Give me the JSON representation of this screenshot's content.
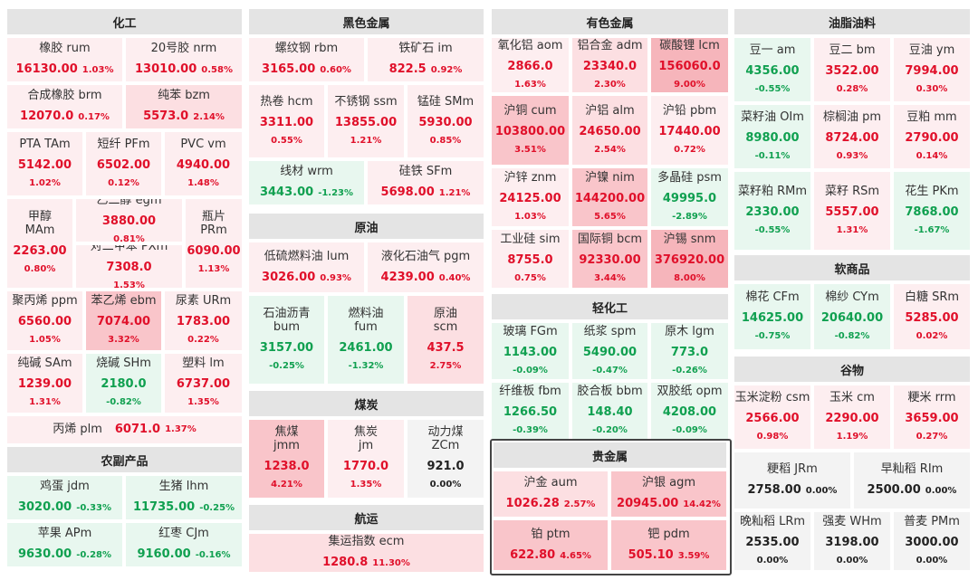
{
  "sections": [
    {
      "title": "化工",
      "tiles": [
        {
          "name": "橡胶 rum",
          "price": "16130.00",
          "pct": "1.03%",
          "dir": "up"
        },
        {
          "name": "20号胶 nrm",
          "price": "13010.00",
          "pct": "0.58%",
          "dir": "up"
        },
        {
          "name": "合成橡胶 brm",
          "price": "12070.0",
          "pct": "0.17%",
          "dir": "up"
        },
        {
          "name": "纯苯 bzm",
          "price": "5573.0",
          "pct": "2.14%",
          "dir": "up"
        },
        {
          "name": "PTA TAm",
          "price": "5142.00",
          "pct": "1.02%",
          "dir": "up"
        },
        {
          "name": "短纤 PFm",
          "price": "6502.00",
          "pct": "0.12%",
          "dir": "up"
        },
        {
          "name": "PVC vm",
          "price": "4940.00",
          "pct": "1.48%",
          "dir": "up"
        },
        {
          "name": "甲醇\nMAm",
          "price": "2263.00",
          "pct": "0.80%",
          "dir": "up"
        },
        {
          "name": "乙二醇 egm",
          "price": "3880.00",
          "pct": "0.81%",
          "dir": "up"
        },
        {
          "name": "对二甲苯 PXm",
          "price": "7308.0",
          "pct": "1.53%",
          "dir": "up"
        },
        {
          "name": "瓶片\nPRm",
          "price": "6090.00",
          "pct": "1.13%",
          "dir": "up"
        },
        {
          "name": "聚丙烯 ppm",
          "price": "6560.00",
          "pct": "1.05%",
          "dir": "up"
        },
        {
          "name": "苯乙烯 ebm",
          "price": "7074.00",
          "pct": "3.32%",
          "dir": "up"
        },
        {
          "name": "尿素 URm",
          "price": "1783.00",
          "pct": "0.22%",
          "dir": "up"
        },
        {
          "name": "纯碱 SAm",
          "price": "1239.00",
          "pct": "1.31%",
          "dir": "up"
        },
        {
          "name": "烧碱 SHm",
          "price": "2180.0",
          "pct": "-0.82%",
          "dir": "down"
        },
        {
          "name": "塑料 lm",
          "price": "6737.00",
          "pct": "1.35%",
          "dir": "up"
        },
        {
          "name": "丙烯 plm",
          "price": "6071.0",
          "pct": "1.37%",
          "dir": "up"
        }
      ]
    },
    {
      "title": "农副产品",
      "tiles": [
        {
          "name": "鸡蛋 jdm",
          "price": "3020.00",
          "pct": "-0.33%",
          "dir": "down"
        },
        {
          "name": "生猪 lhm",
          "price": "11735.00",
          "pct": "-0.25%",
          "dir": "down"
        },
        {
          "name": "苹果 APm",
          "price": "9630.00",
          "pct": "-0.28%",
          "dir": "down"
        },
        {
          "name": "红枣 CJm",
          "price": "9160.00",
          "pct": "-0.16%",
          "dir": "down"
        }
      ]
    },
    {
      "title": "黑色金属",
      "tiles": [
        {
          "name": "螺纹钢 rbm",
          "price": "3165.00",
          "pct": "0.60%",
          "dir": "up"
        },
        {
          "name": "铁矿石 im",
          "price": "822.5",
          "pct": "0.92%",
          "dir": "up"
        },
        {
          "name": "热卷 hcm",
          "price": "3311.00",
          "pct": "0.55%",
          "dir": "up"
        },
        {
          "name": "不锈钢 ssm",
          "price": "13855.00",
          "pct": "1.21%",
          "dir": "up"
        },
        {
          "name": "锰硅 SMm",
          "price": "5930.00",
          "pct": "0.85%",
          "dir": "up"
        },
        {
          "name": "线材 wrm",
          "price": "3443.00",
          "pct": "-1.23%",
          "dir": "down"
        },
        {
          "name": "硅铁 SFm",
          "price": "5698.00",
          "pct": "1.21%",
          "dir": "up"
        }
      ]
    },
    {
      "title": "原油",
      "tiles": [
        {
          "name": "低硫燃料油 lum",
          "price": "3026.00",
          "pct": "0.93%",
          "dir": "up"
        },
        {
          "name": "液化石油气 pgm",
          "price": "4239.00",
          "pct": "0.40%",
          "dir": "up"
        },
        {
          "name": "石油沥青\nbum",
          "price": "3157.00",
          "pct": "-0.25%",
          "dir": "down"
        },
        {
          "name": "燃料油\nfum",
          "price": "2461.00",
          "pct": "-1.32%",
          "dir": "down"
        },
        {
          "name": "原油\nscm",
          "price": "437.5",
          "pct": "2.75%",
          "dir": "up"
        }
      ]
    },
    {
      "title": "煤炭",
      "tiles": [
        {
          "name": "焦煤\njmm",
          "price": "1238.0",
          "pct": "4.21%",
          "dir": "up"
        },
        {
          "name": "焦炭\njm",
          "price": "1770.0",
          "pct": "1.35%",
          "dir": "up"
        },
        {
          "name": "动力煤\nZCm",
          "price": "921.0",
          "pct": "0.00%",
          "dir": "flat"
        }
      ]
    },
    {
      "title": "航运",
      "tiles": [
        {
          "name": "集运指数 ecm",
          "price": "1280.8",
          "pct": "11.30%",
          "dir": "up"
        }
      ]
    },
    {
      "title": "有色金属",
      "tiles": [
        {
          "name": "氧化铝 aom",
          "price": "2866.0",
          "pct": "1.63%",
          "dir": "up"
        },
        {
          "name": "铝合金 adm",
          "price": "23340.0",
          "pct": "2.30%",
          "dir": "up"
        },
        {
          "name": "碳酸锂 lcm",
          "price": "156060.0",
          "pct": "9.00%",
          "dir": "up"
        },
        {
          "name": "沪铜 cum",
          "price": "103800.00",
          "pct": "3.51%",
          "dir": "up"
        },
        {
          "name": "沪铝 alm",
          "price": "24650.00",
          "pct": "2.54%",
          "dir": "up"
        },
        {
          "name": "沪铅 pbm",
          "price": "17440.00",
          "pct": "0.72%",
          "dir": "up"
        },
        {
          "name": "沪锌 znm",
          "price": "24125.00",
          "pct": "1.03%",
          "dir": "up"
        },
        {
          "name": "沪镍 nim",
          "price": "144200.00",
          "pct": "5.65%",
          "dir": "up"
        },
        {
          "name": "多晶硅 psm",
          "price": "49995.0",
          "pct": "-2.89%",
          "dir": "down"
        },
        {
          "name": "工业硅 sim",
          "price": "8755.0",
          "pct": "0.75%",
          "dir": "up"
        },
        {
          "name": "国际铜 bcm",
          "price": "92330.00",
          "pct": "3.44%",
          "dir": "up"
        },
        {
          "name": "沪锡 snm",
          "price": "376920.00",
          "pct": "8.00%",
          "dir": "up"
        }
      ]
    },
    {
      "title": "轻化工",
      "tiles": [
        {
          "name": "玻璃 FGm",
          "price": "1143.00",
          "pct": "-0.09%",
          "dir": "down"
        },
        {
          "name": "纸浆 spm",
          "price": "5490.00",
          "pct": "-0.47%",
          "dir": "down"
        },
        {
          "name": "原木 lgm",
          "price": "773.0",
          "pct": "-0.26%",
          "dir": "down"
        },
        {
          "name": "纤维板 fbm",
          "price": "1266.50",
          "pct": "-0.39%",
          "dir": "down"
        },
        {
          "name": "胶合板 bbm",
          "price": "148.40",
          "pct": "-0.20%",
          "dir": "down"
        },
        {
          "name": "双胶纸 opm",
          "price": "4208.00",
          "pct": "-0.09%",
          "dir": "down"
        }
      ]
    },
    {
      "title": "贵金属",
      "tiles": [
        {
          "name": "沪金 aum",
          "price": "1026.28",
          "pct": "2.57%",
          "dir": "up"
        },
        {
          "name": "沪银 agm",
          "price": "20945.00",
          "pct": "14.42%",
          "dir": "up"
        },
        {
          "name": "铂 ptm",
          "price": "622.80",
          "pct": "4.65%",
          "dir": "up"
        },
        {
          "name": "钯 pdm",
          "price": "505.10",
          "pct": "3.59%",
          "dir": "up"
        }
      ]
    },
    {
      "title": "油脂油料",
      "tiles": [
        {
          "name": "豆一 am",
          "price": "4356.00",
          "pct": "-0.55%",
          "dir": "down"
        },
        {
          "name": "豆二 bm",
          "price": "3522.00",
          "pct": "0.28%",
          "dir": "up"
        },
        {
          "name": "豆油 ym",
          "price": "7994.00",
          "pct": "0.30%",
          "dir": "up"
        },
        {
          "name": "菜籽油 OIm",
          "price": "8980.00",
          "pct": "-0.11%",
          "dir": "down"
        },
        {
          "name": "棕榈油 pm",
          "price": "8724.00",
          "pct": "0.93%",
          "dir": "up"
        },
        {
          "name": "豆粕 mm",
          "price": "2790.00",
          "pct": "0.14%",
          "dir": "up"
        },
        {
          "name": "菜籽粕 RMm",
          "price": "2330.00",
          "pct": "-0.55%",
          "dir": "down"
        },
        {
          "name": "菜籽 RSm",
          "price": "5557.00",
          "pct": "1.31%",
          "dir": "up"
        },
        {
          "name": "花生 PKm",
          "price": "7868.00",
          "pct": "-1.67%",
          "dir": "down"
        }
      ]
    },
    {
      "title": "软商品",
      "tiles": [
        {
          "name": "棉花 CFm",
          "price": "14625.00",
          "pct": "-0.75%",
          "dir": "down"
        },
        {
          "name": "棉纱 CYm",
          "price": "20640.00",
          "pct": "-0.82%",
          "dir": "down"
        },
        {
          "name": "白糖 SRm",
          "price": "5285.00",
          "pct": "0.02%",
          "dir": "up"
        }
      ]
    },
    {
      "title": "谷物",
      "tiles": [
        {
          "name": "玉米淀粉 csm",
          "price": "2566.00",
          "pct": "0.98%",
          "dir": "up"
        },
        {
          "name": "玉米 cm",
          "price": "2290.00",
          "pct": "1.19%",
          "dir": "up"
        },
        {
          "name": "粳米 rrm",
          "price": "3659.00",
          "pct": "0.27%",
          "dir": "up"
        },
        {
          "name": "粳稻 JRm",
          "price": "2758.00",
          "pct": "0.00%",
          "dir": "flat"
        },
        {
          "name": "早籼稻 RIm",
          "price": "2500.00",
          "pct": "0.00%",
          "dir": "flat"
        },
        {
          "name": "晚籼稻 LRm",
          "price": "2535.00",
          "pct": "0.00%",
          "dir": "flat"
        },
        {
          "name": "强麦 WHm",
          "price": "3198.00",
          "pct": "0.00%",
          "dir": "flat"
        },
        {
          "name": "普麦 PMm",
          "price": "3000.00",
          "pct": "0.00%",
          "dir": "flat"
        }
      ]
    }
  ]
}
